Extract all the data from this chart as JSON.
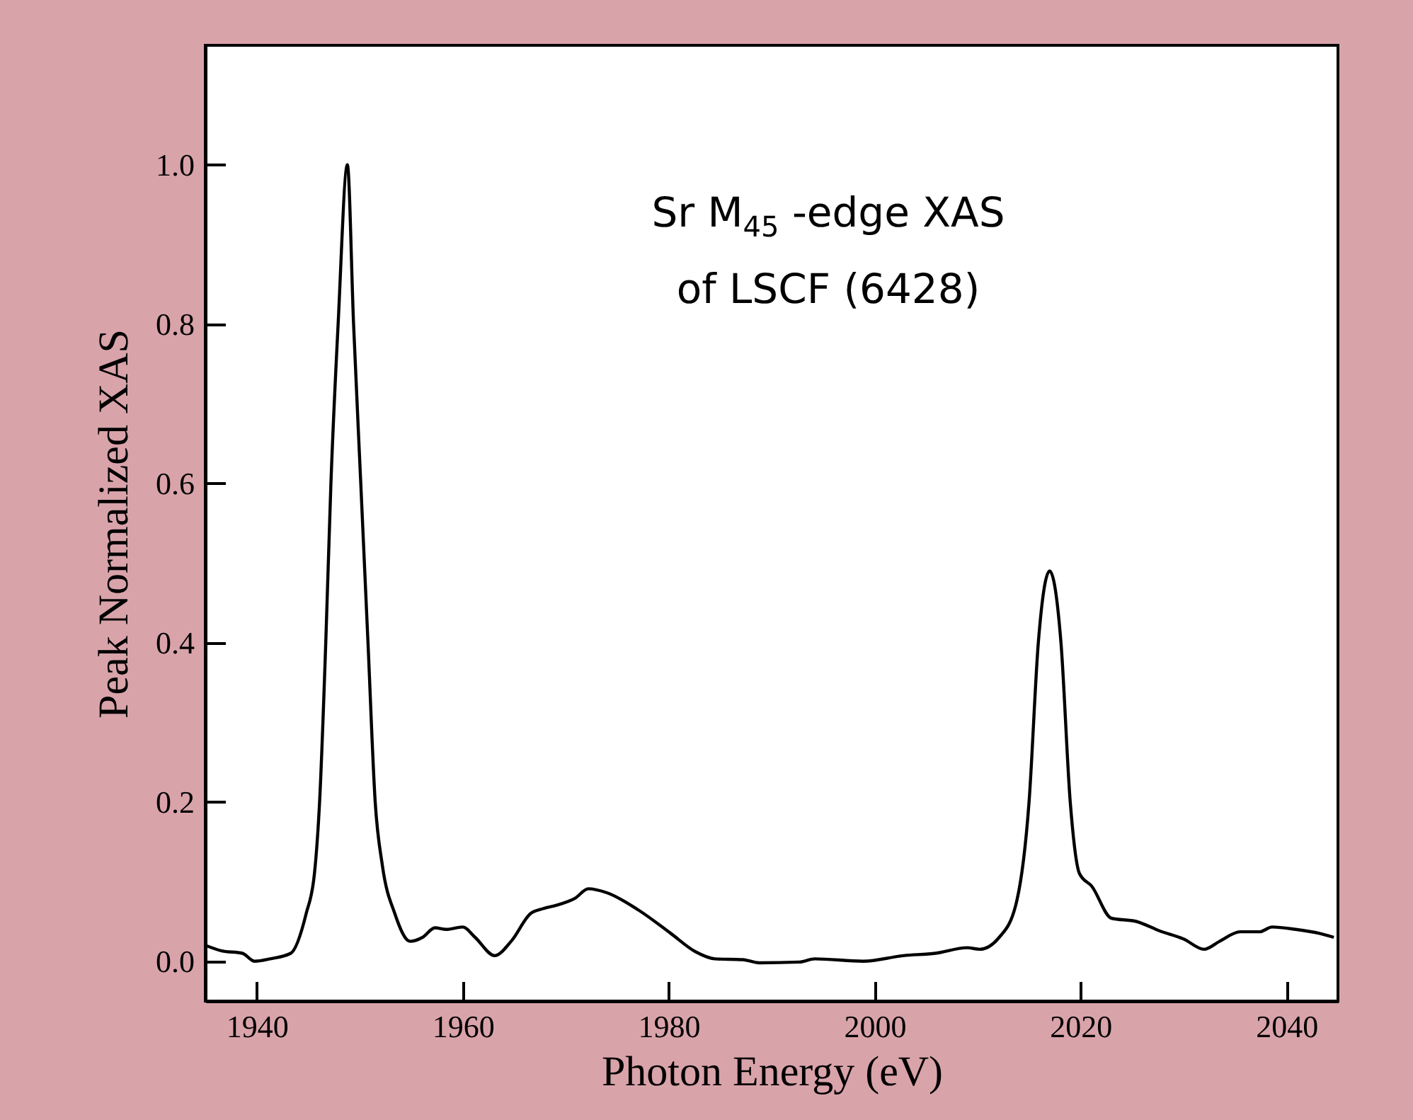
{
  "chart_data": {
    "type": "line",
    "xlabel": "Photon Energy (eV)",
    "ylabel": "Peak Normalized XAS",
    "annotations": [
      "Sr M$_{45}$ -edge XAS",
      "of LSCF (6428)"
    ],
    "xlim": [
      1935,
      2045
    ],
    "xticks": [
      1940,
      1960,
      1980,
      2000,
      2020,
      2040
    ],
    "ylim": [
      -0.05,
      1.15
    ],
    "yticks": [
      {
        "value": 0,
        "label": "0.0"
      },
      {
        "value": 0.2,
        "label": "0.2"
      },
      {
        "value": 0.4,
        "label": "0.4"
      },
      {
        "value": 0.6,
        "label": "0.6"
      },
      {
        "value": 0.8,
        "label": "0.8"
      },
      {
        "value": 1,
        "label": "1.0"
      }
    ],
    "grid": false,
    "series": [
      {
        "color": "#000000",
        "x": [
          1935,
          1936.6,
          1938.6,
          1939.8,
          1941.3,
          1943.3,
          1944.8,
          1945.6,
          1946.1,
          1946.7,
          1947.2,
          1947.9,
          1948.8,
          1949.4,
          1950.1,
          1950.8,
          1951.5,
          1952.2,
          1953.4,
          1954.9,
          1956.1,
          1957.3,
          1958.4,
          1960,
          1961.2,
          1963.1,
          1964.7,
          1966.6,
          1967.8,
          1969.3,
          1970.9,
          1972.2,
          1974,
          1977.1,
          1980.2,
          1982.6,
          1984.5,
          1987.2,
          1988.8,
          1992.7,
          1994.2,
          1998.9,
          2002.8,
          2005.9,
          2009,
          2010.2,
          2012.1,
          2013.7,
          2015,
          2015.9,
          2017,
          2018.1,
          2019,
          2019.9,
          2021.1,
          2023,
          2025.4,
          2027.7,
          2030,
          2032,
          2033.5,
          2035.5,
          2037.4,
          2038.6,
          2040.9,
          2043.2,
          2044.6
        ],
        "values": [
          0.02,
          0.013,
          0.01,
          0,
          0.003,
          0.01,
          0.06,
          0.11,
          0.2,
          0.4,
          0.6,
          0.8,
          1.0,
          0.8,
          0.6,
          0.4,
          0.2,
          0.12,
          0.06,
          0.025,
          0.03,
          0.042,
          0.04,
          0.043,
          0.03,
          0.007,
          0.025,
          0.06,
          0.066,
          0.071,
          0.079,
          0.091,
          0.086,
          0.064,
          0.035,
          0.012,
          0.003,
          0.002,
          -0.002,
          -0.001,
          0.003,
          0,
          0.007,
          0.01,
          0.017,
          0.015,
          0.03,
          0.07,
          0.2,
          0.4,
          0.49,
          0.4,
          0.2,
          0.11,
          0.094,
          0.054,
          0.05,
          0.038,
          0.028,
          0.015,
          0.025,
          0.037,
          0.037,
          0.043,
          0.04,
          0.035,
          0.03
        ]
      }
    ]
  }
}
